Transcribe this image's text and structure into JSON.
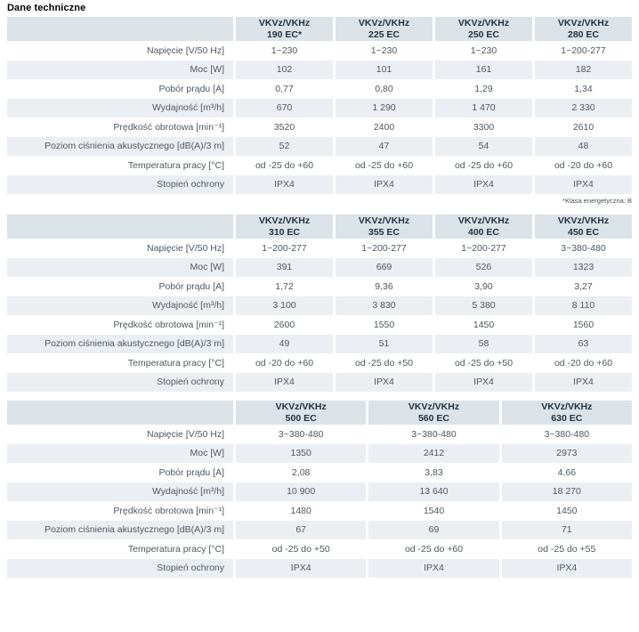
{
  "page": {
    "title": "Dane techniczne",
    "footnote": "*Klasa energetyczna: B"
  },
  "row_labels": [
    "Napięcie [V/50 Hz]",
    "Moc [W]",
    "Pobór prądu [A]",
    "Wydajność [m³/h]",
    "Prędkość obrotowa [min⁻¹]",
    "Poziom ciśnienia akustycznego [dB(A)/3 m]",
    "Temperatura pracy [°C]",
    "Stopień ochrony"
  ],
  "colors": {
    "header_bg": "#dbe2e8",
    "stripe_bg": "#ebeff3",
    "header_text": "#233240",
    "body_text": "#4d5761"
  },
  "tables": [
    {
      "columns": [
        {
          "line1": "VKVz/VKHz",
          "line2": "190 EC*"
        },
        {
          "line1": "VKVz/VKHz",
          "line2": "225 EC"
        },
        {
          "line1": "VKVz/VKHz",
          "line2": "250 EC"
        },
        {
          "line1": "VKVz/VKHz",
          "line2": "280 EC"
        }
      ],
      "rows": [
        [
          "1~230",
          "1~230",
          "1~230",
          "1~200-277"
        ],
        [
          "102",
          "101",
          "161",
          "182"
        ],
        [
          "0,77",
          "0,80",
          "1,29",
          "1,34"
        ],
        [
          "670",
          "1 290",
          "1 470",
          "2 330"
        ],
        [
          "3520",
          "2400",
          "3300",
          "2610"
        ],
        [
          "52",
          "47",
          "54",
          "48"
        ],
        [
          "od -25 do +60",
          "od -25 do +60",
          "od -25 do +60",
          "od -20 do +60"
        ],
        [
          "IPX4",
          "IPX4",
          "IPX4",
          "IPX4"
        ]
      ]
    },
    {
      "columns": [
        {
          "line1": "VKVz/VKHz",
          "line2": "310 EC"
        },
        {
          "line1": "VKVz/VKHz",
          "line2": "355 EC"
        },
        {
          "line1": "VKVz/VKHz",
          "line2": "400 EC"
        },
        {
          "line1": "VKVz/VKHz",
          "line2": "450 EC"
        }
      ],
      "rows": [
        [
          "1~200-277",
          "1~200-277",
          "1~200-277",
          "3~380-480"
        ],
        [
          "391",
          "669",
          "526",
          "1323"
        ],
        [
          "1,72",
          "9,36",
          "3,90",
          "3,27"
        ],
        [
          "3 100",
          "3 830",
          "5 380",
          "8 110"
        ],
        [
          "2600",
          "1550",
          "1450",
          "1560"
        ],
        [
          "49",
          "51",
          "58",
          "63"
        ],
        [
          "od -20 do +60",
          "od -25 do +50",
          "od -25 do +50",
          "od -20 do +60"
        ],
        [
          "IPX4",
          "IPX4",
          "IPX4",
          "IPX4"
        ]
      ]
    },
    {
      "columns": [
        {
          "line1": "VKVz/VKHz",
          "line2": "500 EC"
        },
        {
          "line1": "VKVz/VKHz",
          "line2": "560 EC"
        },
        {
          "line1": "VKVz/VKHz",
          "line2": "630 EC"
        }
      ],
      "rows": [
        [
          "3~380-480",
          "3~380-480",
          "3~380-480"
        ],
        [
          "1350",
          "2412",
          "2973"
        ],
        [
          "2,08",
          "3,83",
          "4,66"
        ],
        [
          "10 900",
          "13 640",
          "18 270"
        ],
        [
          "1480",
          "1540",
          "1450"
        ],
        [
          "67",
          "69",
          "71"
        ],
        [
          "od -25 do +50",
          "od -25 do +60",
          "od -25 do +55"
        ],
        [
          "IPX4",
          "IPX4",
          "IPX4"
        ]
      ]
    }
  ]
}
